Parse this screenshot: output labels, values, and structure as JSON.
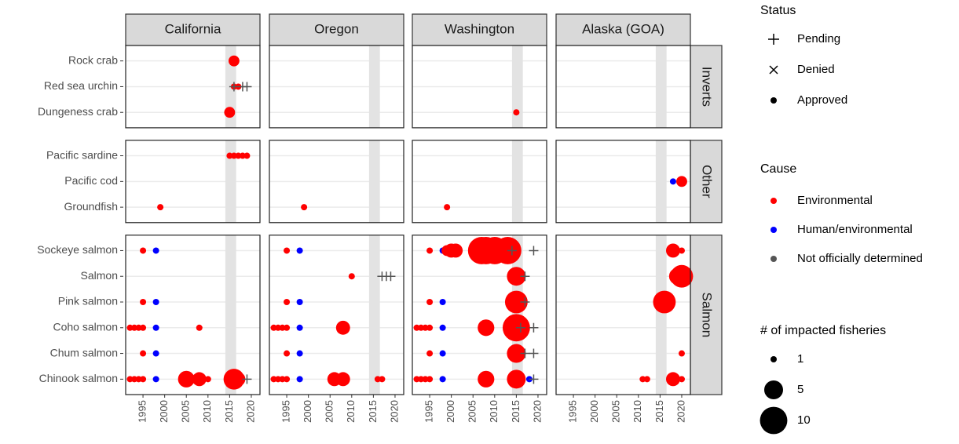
{
  "chart_data": {
    "type": "scatter",
    "columns": [
      "California",
      "Oregon",
      "Washington",
      "Alaska (GOA)"
    ],
    "rows": [
      {
        "name": "Inverts",
        "categories": [
          "Rock crab",
          "Red sea urchin",
          "Dungeness crab"
        ]
      },
      {
        "name": "Other",
        "categories": [
          "Pacific sardine",
          "Pacific cod",
          "Groundfish"
        ]
      },
      {
        "name": "Salmon",
        "categories": [
          "Sockeye salmon",
          "Salmon",
          "Pink salmon",
          "Coho salmon",
          "Chum salmon",
          "Chinook salmon"
        ]
      }
    ],
    "xlim": [
      1991,
      2022
    ],
    "xticks": [
      1995,
      2000,
      2005,
      2010,
      2015,
      2020
    ],
    "highlight": [
      2014,
      2016.5
    ],
    "grid": true,
    "status": {
      "title": "Status",
      "labels": [
        "Pending",
        "Denied",
        "Approved"
      ]
    },
    "cause": {
      "title": "Cause",
      "labels": [
        "Environmental",
        "Human/environmental",
        "Not officially determined"
      ],
      "colors": [
        "#ff0000",
        "#0000ff",
        "#555555"
      ]
    },
    "size": {
      "title": "# of impacted fisheries",
      "values": [
        1,
        5,
        10
      ]
    },
    "points": [
      [
        0,
        0,
        0,
        2016,
        2,
        0,
        2
      ],
      [
        0,
        0,
        1,
        2016,
        1,
        0,
        2
      ],
      [
        0,
        0,
        1,
        2017,
        1,
        0,
        2
      ],
      [
        0,
        0,
        1,
        2016,
        1,
        2,
        0
      ],
      [
        0,
        0,
        1,
        2018,
        1,
        2,
        0
      ],
      [
        0,
        0,
        1,
        2019,
        1,
        2,
        0
      ],
      [
        0,
        0,
        2,
        2015,
        2,
        0,
        2
      ],
      [
        0,
        1,
        0,
        2015,
        1,
        0,
        2
      ],
      [
        0,
        1,
        0,
        2016,
        1,
        0,
        2
      ],
      [
        0,
        1,
        0,
        2017,
        1,
        0,
        2
      ],
      [
        0,
        1,
        0,
        2018,
        1,
        0,
        2
      ],
      [
        0,
        1,
        0,
        2019,
        1,
        0,
        2
      ],
      [
        0,
        1,
        2,
        1999,
        1,
        0,
        2
      ],
      [
        0,
        2,
        0,
        1995,
        1,
        0,
        2
      ],
      [
        0,
        2,
        0,
        1998,
        1,
        1,
        2
      ],
      [
        0,
        2,
        2,
        1995,
        1,
        0,
        2
      ],
      [
        0,
        2,
        2,
        1998,
        1,
        1,
        2
      ],
      [
        0,
        2,
        3,
        1992,
        1,
        0,
        2
      ],
      [
        0,
        2,
        3,
        1993,
        1,
        0,
        2
      ],
      [
        0,
        2,
        3,
        1994,
        1,
        0,
        2
      ],
      [
        0,
        2,
        3,
        1995,
        1,
        0,
        2
      ],
      [
        0,
        2,
        3,
        1998,
        1,
        1,
        2
      ],
      [
        0,
        2,
        3,
        2008,
        1,
        0,
        2
      ],
      [
        0,
        2,
        4,
        1995,
        1,
        0,
        2
      ],
      [
        0,
        2,
        4,
        1998,
        1,
        1,
        2
      ],
      [
        0,
        2,
        5,
        1992,
        1,
        0,
        2
      ],
      [
        0,
        2,
        5,
        1993,
        1,
        0,
        2
      ],
      [
        0,
        2,
        5,
        1994,
        1,
        0,
        2
      ],
      [
        0,
        2,
        5,
        1995,
        1,
        0,
        2
      ],
      [
        0,
        2,
        5,
        1998,
        1,
        1,
        2
      ],
      [
        0,
        2,
        5,
        2005,
        4,
        0,
        2
      ],
      [
        0,
        2,
        5,
        2008,
        3,
        0,
        2
      ],
      [
        0,
        2,
        5,
        2010,
        1,
        0,
        2
      ],
      [
        0,
        2,
        5,
        2016,
        6,
        0,
        2
      ],
      [
        0,
        2,
        5,
        2017,
        3,
        0,
        2
      ],
      [
        0,
        2,
        5,
        2019,
        1,
        2,
        0
      ],
      [
        1,
        1,
        2,
        1999,
        1,
        0,
        2
      ],
      [
        1,
        2,
        0,
        1995,
        1,
        0,
        2
      ],
      [
        1,
        2,
        0,
        1998,
        1,
        1,
        2
      ],
      [
        1,
        2,
        1,
        2010,
        1,
        0,
        2
      ],
      [
        1,
        2,
        1,
        2017,
        1,
        2,
        0
      ],
      [
        1,
        2,
        1,
        2018,
        1,
        2,
        0
      ],
      [
        1,
        2,
        1,
        2019,
        1,
        2,
        0
      ],
      [
        1,
        2,
        2,
        1995,
        1,
        0,
        2
      ],
      [
        1,
        2,
        2,
        1998,
        1,
        1,
        2
      ],
      [
        1,
        2,
        3,
        1992,
        1,
        0,
        2
      ],
      [
        1,
        2,
        3,
        1993,
        1,
        0,
        2
      ],
      [
        1,
        2,
        3,
        1994,
        1,
        0,
        2
      ],
      [
        1,
        2,
        3,
        1995,
        1,
        0,
        2
      ],
      [
        1,
        2,
        3,
        1998,
        1,
        1,
        2
      ],
      [
        1,
        2,
        3,
        2008,
        3,
        0,
        2
      ],
      [
        1,
        2,
        4,
        1995,
        1,
        0,
        2
      ],
      [
        1,
        2,
        4,
        1998,
        1,
        1,
        2
      ],
      [
        1,
        2,
        5,
        1992,
        1,
        0,
        2
      ],
      [
        1,
        2,
        5,
        1993,
        1,
        0,
        2
      ],
      [
        1,
        2,
        5,
        1994,
        1,
        0,
        2
      ],
      [
        1,
        2,
        5,
        1995,
        1,
        0,
        2
      ],
      [
        1,
        2,
        5,
        1998,
        1,
        1,
        2
      ],
      [
        1,
        2,
        5,
        2006,
        3,
        0,
        2
      ],
      [
        1,
        2,
        5,
        2008,
        3,
        0,
        2
      ],
      [
        1,
        2,
        5,
        2016,
        1,
        0,
        2
      ],
      [
        1,
        2,
        5,
        2017,
        1,
        0,
        2
      ],
      [
        2,
        0,
        2,
        2015,
        1,
        0,
        2
      ],
      [
        2,
        1,
        2,
        1999,
        1,
        0,
        2
      ],
      [
        2,
        2,
        0,
        1995,
        1,
        0,
        2
      ],
      [
        2,
        2,
        0,
        1998,
        1,
        1,
        2
      ],
      [
        2,
        2,
        0,
        1999,
        2,
        0,
        2
      ],
      [
        2,
        2,
        0,
        2000,
        3,
        0,
        2
      ],
      [
        2,
        2,
        0,
        2001,
        3,
        0,
        2
      ],
      [
        2,
        2,
        0,
        2007,
        10,
        0,
        2
      ],
      [
        2,
        2,
        0,
        2008,
        10,
        0,
        2
      ],
      [
        2,
        2,
        0,
        2010,
        10,
        0,
        2
      ],
      [
        2,
        2,
        0,
        2013,
        10,
        0,
        2
      ],
      [
        2,
        2,
        0,
        2014,
        1,
        2,
        0
      ],
      [
        2,
        2,
        0,
        2019,
        1,
        2,
        0
      ],
      [
        2,
        2,
        1,
        2015,
        5,
        0,
        2
      ],
      [
        2,
        2,
        1,
        2017,
        1,
        2,
        0
      ],
      [
        2,
        2,
        2,
        1995,
        1,
        0,
        2
      ],
      [
        2,
        2,
        2,
        1998,
        1,
        1,
        2
      ],
      [
        2,
        2,
        2,
        2015,
        7,
        0,
        2
      ],
      [
        2,
        2,
        2,
        2017,
        1,
        2,
        0
      ],
      [
        2,
        2,
        3,
        1992,
        1,
        0,
        2
      ],
      [
        2,
        2,
        3,
        1993,
        1,
        0,
        2
      ],
      [
        2,
        2,
        3,
        1994,
        1,
        0,
        2
      ],
      [
        2,
        2,
        3,
        1995,
        1,
        0,
        2
      ],
      [
        2,
        2,
        3,
        1998,
        1,
        1,
        2
      ],
      [
        2,
        2,
        3,
        2008,
        4,
        0,
        2
      ],
      [
        2,
        2,
        3,
        2015,
        10,
        0,
        2
      ],
      [
        2,
        2,
        3,
        2016,
        1,
        2,
        0
      ],
      [
        2,
        2,
        3,
        2019,
        1,
        2,
        0
      ],
      [
        2,
        2,
        4,
        1995,
        1,
        0,
        2
      ],
      [
        2,
        2,
        4,
        1998,
        1,
        1,
        2
      ],
      [
        2,
        2,
        4,
        2015,
        5,
        0,
        2
      ],
      [
        2,
        2,
        4,
        2017,
        1,
        2,
        0
      ],
      [
        2,
        2,
        4,
        2019,
        1,
        2,
        0
      ],
      [
        2,
        2,
        5,
        1992,
        1,
        0,
        2
      ],
      [
        2,
        2,
        5,
        1993,
        1,
        0,
        2
      ],
      [
        2,
        2,
        5,
        1994,
        1,
        0,
        2
      ],
      [
        2,
        2,
        5,
        1995,
        1,
        0,
        2
      ],
      [
        2,
        2,
        5,
        1998,
        1,
        1,
        2
      ],
      [
        2,
        2,
        5,
        2008,
        4,
        0,
        2
      ],
      [
        2,
        2,
        5,
        2015,
        5,
        0,
        2
      ],
      [
        2,
        2,
        5,
        2018,
        1,
        1,
        2
      ],
      [
        2,
        2,
        5,
        2019,
        1,
        2,
        0
      ],
      [
        3,
        1,
        1,
        2018,
        1,
        1,
        2
      ],
      [
        3,
        1,
        1,
        2020,
        2,
        0,
        2
      ],
      [
        3,
        2,
        0,
        2018,
        3,
        0,
        2
      ],
      [
        3,
        2,
        0,
        2020,
        1,
        0,
        2
      ],
      [
        3,
        2,
        1,
        2019,
        4,
        0,
        2
      ],
      [
        3,
        2,
        1,
        2020,
        7,
        0,
        2
      ],
      [
        3,
        2,
        2,
        2016,
        7,
        0,
        2
      ],
      [
        3,
        2,
        4,
        2020,
        1,
        0,
        2
      ],
      [
        3,
        2,
        5,
        2011,
        1,
        0,
        2
      ],
      [
        3,
        2,
        5,
        2012,
        1,
        0,
        2
      ],
      [
        3,
        2,
        5,
        2018,
        3,
        0,
        2
      ],
      [
        3,
        2,
        5,
        2020,
        1,
        0,
        2
      ]
    ]
  }
}
